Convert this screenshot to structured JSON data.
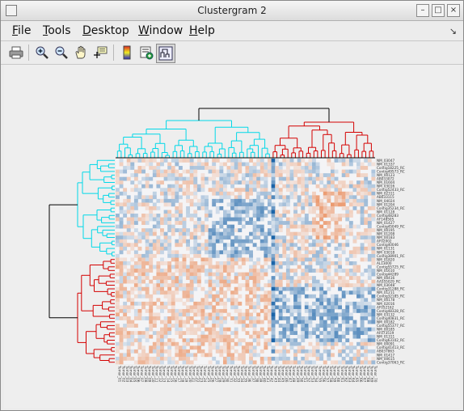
{
  "window": {
    "title": "Clustergram 2",
    "minimize_label": "–",
    "maximize_label": "□",
    "close_label": "×"
  },
  "menubar": {
    "items": [
      {
        "key": "F",
        "rest": "ile"
      },
      {
        "key": "T",
        "rest": "ools"
      },
      {
        "key": "D",
        "rest": "esktop"
      },
      {
        "key": "W",
        "rest": "indow"
      },
      {
        "key": "H",
        "rest": "elp"
      }
    ],
    "dock_glyph": "↘"
  },
  "toolbar": {
    "tools": [
      "print-icon",
      "zoom-in-icon",
      "zoom-out-icon",
      "pan-hand-icon",
      "data-cursor-icon",
      "colorbar-icon",
      "insert-legend-icon",
      "dendrogram-toggle-icon"
    ]
  },
  "clustergram": {
    "colors": {
      "cluster_a": "#00d8e8",
      "cluster_b": "#d40000",
      "root": "#000000",
      "positive": "#e8783c",
      "negative": "#1b64a8",
      "neutral": "#f4f4f6"
    },
    "row_labels": [
      "NM_03047",
      "NM_01337",
      "Contig18225_RC",
      "Contig49573_RC",
      "NM_00123",
      "AB033072",
      "NM_01604",
      "NM_03016",
      "Contig52433_RC",
      "NM_02311",
      "AB033115",
      "NM_04024",
      "NM_01204",
      "Contig35234_RC",
      "NM_01128",
      "Contig48283",
      "AF148505",
      "NM_01427",
      "Contig45049_RC",
      "NM_00195",
      "NM_01208",
      "NM_00183",
      "AF02002",
      "Contig40046",
      "NM_01131",
      "NM_03018",
      "Contig38901_RC",
      "NM_01820",
      "AL13000",
      "Contig55725_RC",
      "NM_01610",
      "Contig44289",
      "NM_00416",
      "AA555029_RC",
      "NM_03048",
      "Contig31288_RC",
      "NM_01211",
      "Contig32185_RC",
      "NM_00178",
      "NM_02016",
      "AF052162",
      "Contig48328_RC",
      "NM_03132",
      "Contig40831_RC",
      "NM_00182",
      "Contig55377_RC",
      "NM_00185",
      "AF073519",
      "NM_01311",
      "Contig63102_RC",
      "NM_00091",
      "Contig41413_RC",
      "AB037863",
      "NM_01417",
      "NM_00615",
      "Contig37063_RC"
    ],
    "column_labels": [
      "Tumor_01",
      "Tumor_02",
      "Tumor_03",
      "Tumor_04",
      "Tumor_05",
      "Tumor_06",
      "Tumor_07",
      "Tumor_08",
      "Tumor_09",
      "Tumor_10",
      "Tumor_11",
      "Tumor_12",
      "Tumor_13",
      "Tumor_14",
      "Tumor_15",
      "Tumor_16",
      "Tumor_17",
      "Tumor_18",
      "Tumor_19",
      "Tumor_20",
      "Tumor_21",
      "Tumor_22",
      "Tumor_23",
      "Tumor_24",
      "Tumor_25",
      "Tumor_26",
      "Tumor_27",
      "Tumor_28",
      "Tumor_29",
      "Tumor_30",
      "Tumor_31",
      "Tumor_32",
      "Tumor_33",
      "Tumor_34",
      "Tumor_35",
      "Tumor_36",
      "Tumor_37",
      "Tumor_38",
      "Tumor_39",
      "Tumor_40",
      "Tumor_41",
      "Tumor_42",
      "Tumor_43",
      "Tumor_44",
      "Tumor_45",
      "Tumor_46",
      "Tumor_47",
      "Tumor_48",
      "Tumor_49",
      "Tumor_50",
      "Tumor_51",
      "Tumor_52",
      "Tumor_53",
      "Tumor_54",
      "Tumor_55",
      "Tumor_56",
      "Tumor_57",
      "Tumor_58",
      "Tumor_59",
      "Tumor_60",
      "Tumor_61",
      "Tumor_62",
      "Tumor_63",
      "Tumor_64",
      "Tumor_65",
      "Tumor_66",
      "Tumor_67",
      "Tumor_68",
      "Tumor_69",
      "Tumor_70"
    ]
  }
}
